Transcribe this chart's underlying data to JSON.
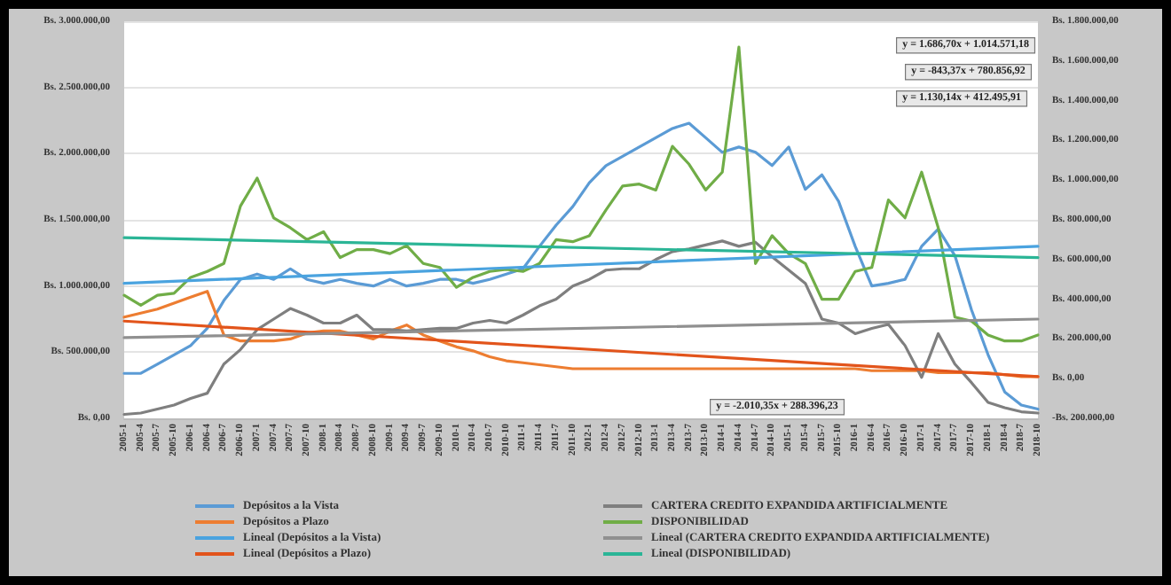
{
  "chart_data": {
    "type": "line",
    "categories": [
      "2005-1",
      "2005-4",
      "2005-7",
      "2005-10",
      "2006-1",
      "2006-4",
      "2006-7",
      "2006-10",
      "2007-1",
      "2007-4",
      "2007-7",
      "2007-10",
      "2008-1",
      "2008-4",
      "2008-7",
      "2008-10",
      "2009-1",
      "2009-4",
      "2009-7",
      "2009-10",
      "2010-1",
      "2010-4",
      "2010-7",
      "2010-10",
      "2011-1",
      "2011-4",
      "2011-7",
      "2011-10",
      "2012-1",
      "2012-4",
      "2012-7",
      "2012-10",
      "2013-1",
      "2013-4",
      "2013-7",
      "2013-10",
      "2014-1",
      "2014-4",
      "2014-7",
      "2014-10",
      "2015-1",
      "2015-4",
      "2015-7",
      "2015-10",
      "2016-1",
      "2016-4",
      "2016-7",
      "2016-10",
      "2017-1",
      "2017-4",
      "2017-7",
      "2017-10",
      "2018-1",
      "2018-4",
      "2018-7",
      "2018-10"
    ],
    "series": [
      {
        "name": "Depósitos a la Vista",
        "color": "#5b9bd5",
        "values": [
          340000,
          340000,
          410000,
          480000,
          550000,
          680000,
          890000,
          1050000,
          1090000,
          1050000,
          1130000,
          1050000,
          1020000,
          1050000,
          1020000,
          1000000,
          1050000,
          1000000,
          1020000,
          1050000,
          1050000,
          1020000,
          1050000,
          1090000,
          1130000,
          1300000,
          1460000,
          1600000,
          1780000,
          1910000,
          1980000,
          2050000,
          2120000,
          2190000,
          2230000,
          2120000,
          2010000,
          2050000,
          2010000,
          1910000,
          2050000,
          1730000,
          1840000,
          1640000,
          1300000,
          1000000,
          1020000,
          1050000,
          1300000,
          1430000,
          1230000,
          820000,
          480000,
          200000,
          100000,
          70000
        ]
      },
      {
        "name": "Depósitos a Plazo",
        "color": "#ed7d31",
        "axis": "y2",
        "values": [
          310000,
          330000,
          350000,
          380000,
          410000,
          440000,
          220000,
          190000,
          190000,
          190000,
          200000,
          230000,
          240000,
          240000,
          220000,
          200000,
          240000,
          270000,
          220000,
          190000,
          160000,
          140000,
          110000,
          90000,
          80000,
          70000,
          60000,
          50000,
          50000,
          50000,
          50000,
          50000,
          50000,
          50000,
          50000,
          50000,
          50000,
          50000,
          50000,
          50000,
          50000,
          50000,
          50000,
          50000,
          50000,
          40000,
          40000,
          40000,
          40000,
          30000,
          30000,
          30000,
          30000,
          20000,
          10000,
          10000
        ]
      },
      {
        "name": "CARTERA CREDITO EXPANDIDA ARTIFICIALMENTE",
        "color": "#7f7f7f",
        "values": [
          30000,
          40000,
          70000,
          100000,
          150000,
          190000,
          410000,
          520000,
          670000,
          750000,
          830000,
          780000,
          720000,
          720000,
          780000,
          670000,
          670000,
          660000,
          670000,
          680000,
          680000,
          720000,
          740000,
          720000,
          780000,
          850000,
          900000,
          1000000,
          1050000,
          1120000,
          1130000,
          1130000,
          1200000,
          1260000,
          1280000,
          1310000,
          1340000,
          1300000,
          1330000,
          1220000,
          1120000,
          1020000,
          750000,
          720000,
          640000,
          680000,
          710000,
          550000,
          310000,
          640000,
          410000,
          270000,
          120000,
          80000,
          50000,
          40000
        ]
      },
      {
        "name": "DISPONIBILIDAD",
        "color": "#70ad47",
        "axis": "y2",
        "values": [
          420000,
          370000,
          420000,
          430000,
          510000,
          540000,
          580000,
          870000,
          1010000,
          810000,
          760000,
          700000,
          740000,
          610000,
          650000,
          650000,
          630000,
          670000,
          580000,
          560000,
          460000,
          510000,
          540000,
          550000,
          540000,
          580000,
          700000,
          690000,
          720000,
          850000,
          970000,
          980000,
          950000,
          1170000,
          1080000,
          950000,
          1040000,
          1670000,
          580000,
          720000,
          630000,
          580000,
          400000,
          400000,
          540000,
          560000,
          900000,
          810000,
          1040000,
          760000,
          310000,
          290000,
          220000,
          190000,
          190000,
          220000
        ]
      },
      {
        "name": "Lineal (Depósitos a la Vista)",
        "color": "#4aa3df",
        "values": [
          1020000,
          null,
          null,
          null,
          null,
          null,
          null,
          null,
          null,
          null,
          null,
          null,
          null,
          null,
          null,
          null,
          null,
          null,
          null,
          null,
          null,
          null,
          null,
          null,
          null,
          null,
          null,
          null,
          null,
          null,
          null,
          null,
          null,
          null,
          null,
          null,
          null,
          null,
          null,
          null,
          null,
          null,
          null,
          null,
          null,
          null,
          null,
          null,
          null,
          null,
          null,
          null,
          null,
          null,
          null,
          1300000
        ]
      },
      {
        "name": "Lineal (Depósitos a Plazo)",
        "color": "#e2541b",
        "axis": "y2",
        "values": [
          290000,
          null,
          null,
          null,
          null,
          null,
          null,
          null,
          null,
          null,
          null,
          null,
          null,
          null,
          null,
          null,
          null,
          null,
          null,
          null,
          null,
          null,
          null,
          null,
          null,
          null,
          null,
          null,
          null,
          null,
          null,
          null,
          null,
          null,
          null,
          null,
          null,
          null,
          null,
          null,
          null,
          null,
          null,
          null,
          null,
          null,
          null,
          null,
          null,
          null,
          null,
          null,
          null,
          null,
          null,
          10000
        ]
      },
      {
        "name": "Lineal (CARTERA CREDITO EXPANDIDA ARTIFICIALMENTE)",
        "color": "#909090",
        "values": [
          610000,
          null,
          null,
          null,
          null,
          null,
          null,
          null,
          null,
          null,
          null,
          null,
          null,
          null,
          null,
          null,
          null,
          null,
          null,
          null,
          null,
          null,
          null,
          null,
          null,
          null,
          null,
          null,
          null,
          null,
          null,
          null,
          null,
          null,
          null,
          null,
          null,
          null,
          null,
          null,
          null,
          null,
          null,
          null,
          null,
          null,
          null,
          null,
          null,
          null,
          null,
          null,
          null,
          null,
          null,
          750000
        ]
      },
      {
        "name": "Lineal (DISPONIBILIDAD)",
        "color": "#2bb596",
        "axis": "y2",
        "values": [
          710000,
          null,
          null,
          null,
          null,
          null,
          null,
          null,
          null,
          null,
          null,
          null,
          null,
          null,
          null,
          null,
          null,
          null,
          null,
          null,
          null,
          null,
          null,
          null,
          null,
          null,
          null,
          null,
          null,
          null,
          null,
          null,
          null,
          null,
          null,
          null,
          null,
          null,
          null,
          null,
          null,
          null,
          null,
          null,
          null,
          null,
          null,
          null,
          null,
          null,
          null,
          null,
          null,
          null,
          null,
          610000
        ]
      }
    ],
    "ylim": [
      0,
      3000000
    ],
    "yticks": [
      {
        "value": 0,
        "label": "Bs. 0,00"
      },
      {
        "value": 500000,
        "label": "Bs. 500.000,00"
      },
      {
        "value": 1000000,
        "label": "Bs. 1.000.000,00"
      },
      {
        "value": 1500000,
        "label": "Bs. 1.500.000,00"
      },
      {
        "value": 2000000,
        "label": "Bs. 2.000.000,00"
      },
      {
        "value": 2500000,
        "label": "Bs. 2.500.000,00"
      },
      {
        "value": 3000000,
        "label": "Bs. 3.000.000,00"
      }
    ],
    "y2lim": [
      -200000,
      1800000
    ],
    "y2ticks": [
      {
        "value": -200000,
        "label": "-Bs. 200.000,00"
      },
      {
        "value": 0,
        "label": "Bs. 0,00"
      },
      {
        "value": 200000,
        "label": "Bs. 200.000,00"
      },
      {
        "value": 400000,
        "label": "Bs. 400.000,00"
      },
      {
        "value": 600000,
        "label": "Bs. 600.000,00"
      },
      {
        "value": 800000,
        "label": "Bs. 800.000,00"
      },
      {
        "value": 1000000,
        "label": "Bs. 1.000.000,00"
      },
      {
        "value": 1200000,
        "label": "Bs. 1.200.000,00"
      },
      {
        "value": 1400000,
        "label": "Bs. 1.400.000,00"
      },
      {
        "value": 1600000,
        "label": "Bs. 1.600.000,00"
      },
      {
        "value": 1800000,
        "label": "Bs. 1.800.000,00"
      }
    ],
    "annotations": [
      "y = 1.686,70x + 1.014.571,18",
      "y = -843,37x + 780.856,92",
      "y = 1.130,14x + 412.495,91",
      "y = -2.010,35x + 288.396,23"
    ],
    "grid": "y",
    "legend": "bottom",
    "marker": "none",
    "line_style": "solid"
  }
}
